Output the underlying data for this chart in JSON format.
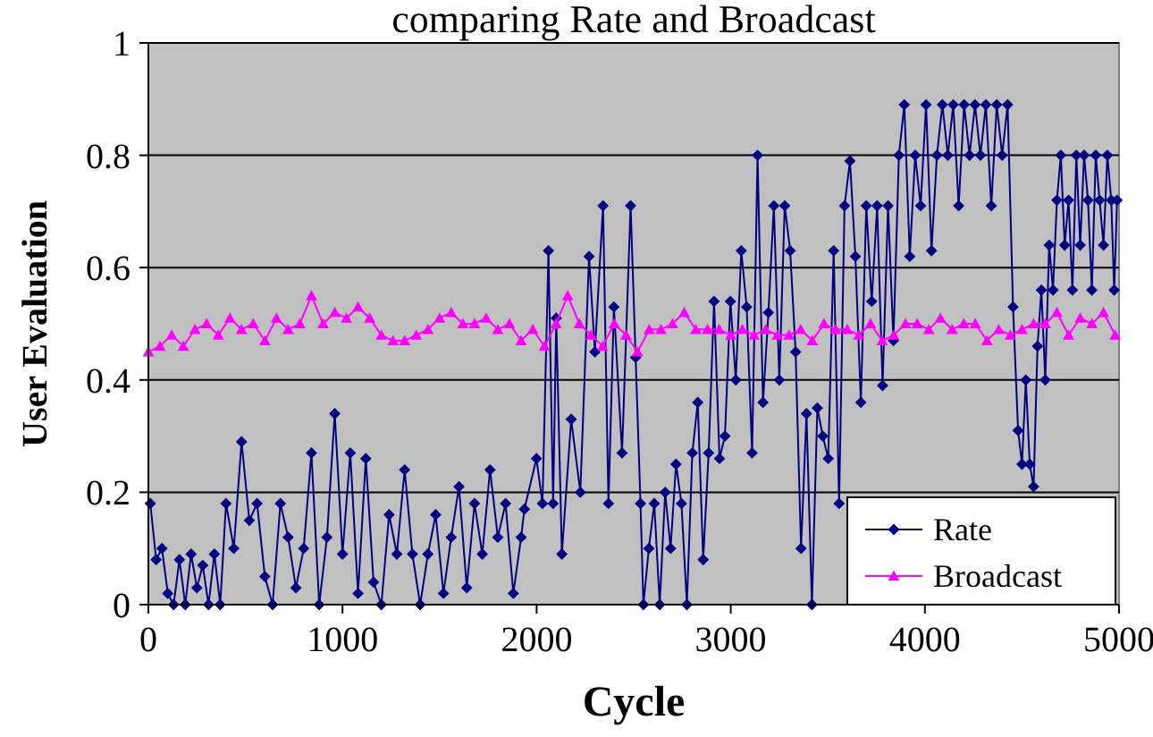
{
  "chart_data": {
    "type": "line",
    "title": "comparing Rate and Broadcast",
    "xlabel": "Cycle",
    "ylabel": "User Evaluation",
    "xlim": [
      0,
      5000
    ],
    "xticks": [
      0,
      1000,
      2000,
      3000,
      4000,
      5000
    ],
    "ylim": [
      0,
      1
    ],
    "yticks": [
      0,
      0.2,
      0.4,
      0.6,
      0.8,
      1
    ],
    "grid": "y",
    "legend": "bottom right",
    "series": [
      {
        "name": "Rate",
        "color": "#000080",
        "marker": "diamond",
        "x": [
          10,
          40,
          70,
          100,
          130,
          160,
          190,
          220,
          250,
          280,
          310,
          340,
          370,
          400,
          440,
          480,
          520,
          560,
          600,
          640,
          680,
          720,
          760,
          800,
          840,
          880,
          920,
          960,
          1000,
          1040,
          1080,
          1120,
          1160,
          1200,
          1240,
          1280,
          1320,
          1360,
          1400,
          1440,
          1480,
          1520,
          1560,
          1600,
          1640,
          1680,
          1720,
          1760,
          1800,
          1840,
          1880,
          1920,
          1937,
          1999,
          2030,
          2061,
          2085,
          2101,
          2130,
          2178,
          2225,
          2270,
          2300,
          2342,
          2370,
          2398,
          2440,
          2484,
          2510,
          2535,
          2550,
          2578,
          2606,
          2634,
          2662,
          2690,
          2718,
          2746,
          2774,
          2802,
          2830,
          2858,
          2886,
          2914,
          2942,
          2970,
          2998,
          3026,
          3054,
          3082,
          3110,
          3138,
          3166,
          3194,
          3222,
          3250,
          3278,
          3306,
          3334,
          3362,
          3390,
          3418,
          3446,
          3474,
          3502,
          3530,
          3558,
          3586,
          3614,
          3642,
          3670,
          3698,
          3726,
          3754,
          3782,
          3810,
          3838,
          3866,
          3894,
          3922,
          3950,
          3978,
          4006,
          4034,
          4062,
          4090,
          4118,
          4146,
          4174,
          4202,
          4230,
          4258,
          4286,
          4314,
          4342,
          4370,
          4398,
          4426,
          4454,
          4480,
          4500,
          4520,
          4540,
          4560,
          4580,
          4600,
          4620,
          4640,
          4660,
          4680,
          4700,
          4720,
          4740,
          4760,
          4780,
          4800,
          4820,
          4840,
          4860,
          4880,
          4900,
          4920,
          4940,
          4960,
          4975,
          4990
        ],
        "values": [
          0.18,
          0.08,
          0.1,
          0.02,
          0,
          0.08,
          0,
          0.09,
          0.03,
          0.07,
          0,
          0.09,
          0,
          0.18,
          0.1,
          0.29,
          0.15,
          0.18,
          0.05,
          0,
          0.18,
          0.12,
          0.03,
          0.1,
          0.27,
          0,
          0.12,
          0.34,
          0.09,
          0.27,
          0.02,
          0.26,
          0.04,
          0,
          0.16,
          0.09,
          0.24,
          0.09,
          0,
          0.09,
          0.16,
          0.02,
          0.12,
          0.21,
          0.03,
          0.18,
          0.09,
          0.24,
          0.12,
          0.18,
          0.02,
          0.12,
          0.17,
          0.26,
          0.18,
          0.63,
          0.18,
          0.51,
          0.09,
          0.33,
          0.2,
          0.62,
          0.45,
          0.71,
          0.18,
          0.53,
          0.27,
          0.71,
          0.44,
          0.18,
          0,
          0.1,
          0.18,
          0,
          0.2,
          0.1,
          0.25,
          0.18,
          0,
          0.27,
          0.36,
          0.08,
          0.27,
          0.54,
          0.26,
          0.3,
          0.54,
          0.4,
          0.63,
          0.53,
          0.27,
          0.8,
          0.36,
          0.52,
          0.71,
          0.4,
          0.71,
          0.63,
          0.45,
          0.1,
          0.34,
          0,
          0.35,
          0.3,
          0.26,
          0.63,
          0.18,
          0.71,
          0.79,
          0.62,
          0.36,
          0.71,
          0.54,
          0.71,
          0.39,
          0.71,
          0.47,
          0.8,
          0.89,
          0.62,
          0.8,
          0.71,
          0.89,
          0.63,
          0.8,
          0.89,
          0.8,
          0.89,
          0.71,
          0.89,
          0.8,
          0.89,
          0.8,
          0.89,
          0.71,
          0.89,
          0.8,
          0.89,
          0.53,
          0.31,
          0.25,
          0.4,
          0.25,
          0.21,
          0.46,
          0.56,
          0.4,
          0.64,
          0.56,
          0.72,
          0.8,
          0.64,
          0.72,
          0.56,
          0.8,
          0.64,
          0.8,
          0.72,
          0.56,
          0.8,
          0.72,
          0.64,
          0.8,
          0.72,
          0.56,
          0.72
        ]
      },
      {
        "name": "Broadcast",
        "color": "#ff00ff",
        "marker": "triangle",
        "x": [
          0,
          60,
          120,
          180,
          240,
          300,
          360,
          420,
          480,
          540,
          600,
          660,
          720,
          780,
          840,
          900,
          960,
          1020,
          1080,
          1140,
          1200,
          1260,
          1320,
          1380,
          1440,
          1500,
          1560,
          1620,
          1680,
          1740,
          1800,
          1860,
          1920,
          1980,
          2040,
          2100,
          2160,
          2220,
          2280,
          2340,
          2400,
          2460,
          2520,
          2580,
          2640,
          2700,
          2760,
          2820,
          2880,
          2940,
          3000,
          3060,
          3120,
          3180,
          3240,
          3300,
          3360,
          3420,
          3480,
          3540,
          3600,
          3660,
          3720,
          3780,
          3840,
          3900,
          3960,
          4020,
          4080,
          4140,
          4200,
          4260,
          4320,
          4380,
          4440,
          4500,
          4560,
          4620,
          4680,
          4740,
          4800,
          4860,
          4920,
          4980
        ],
        "values": [
          0.45,
          0.46,
          0.48,
          0.46,
          0.49,
          0.5,
          0.48,
          0.51,
          0.49,
          0.5,
          0.47,
          0.51,
          0.49,
          0.5,
          0.55,
          0.5,
          0.52,
          0.51,
          0.53,
          0.51,
          0.48,
          0.47,
          0.47,
          0.48,
          0.49,
          0.51,
          0.52,
          0.5,
          0.5,
          0.51,
          0.49,
          0.5,
          0.47,
          0.49,
          0.46,
          0.5,
          0.55,
          0.5,
          0.48,
          0.46,
          0.5,
          0.48,
          0.45,
          0.49,
          0.49,
          0.5,
          0.52,
          0.49,
          0.49,
          0.49,
          0.48,
          0.49,
          0.48,
          0.49,
          0.48,
          0.48,
          0.49,
          0.47,
          0.5,
          0.49,
          0.49,
          0.48,
          0.5,
          0.47,
          0.48,
          0.5,
          0.5,
          0.49,
          0.51,
          0.49,
          0.5,
          0.5,
          0.47,
          0.49,
          0.48,
          0.49,
          0.5,
          0.5,
          0.52,
          0.48,
          0.51,
          0.5,
          0.52,
          0.48
        ]
      }
    ]
  }
}
